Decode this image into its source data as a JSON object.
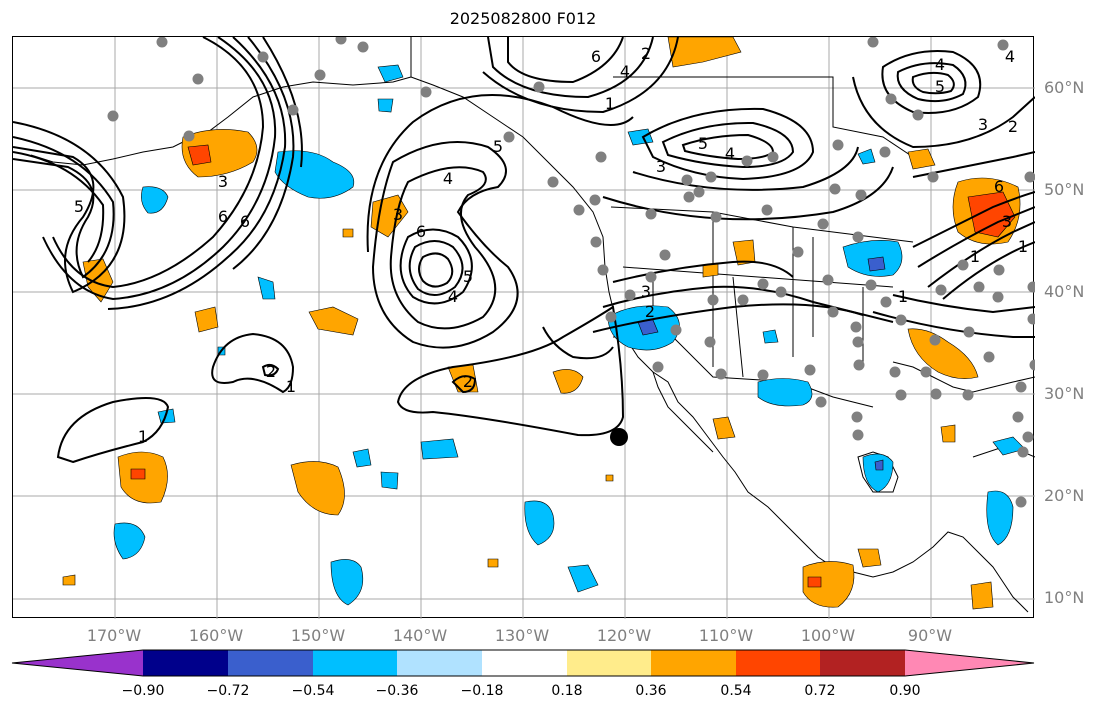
{
  "title": "2025082800 F012",
  "lat_labels": [
    "60°N",
    "50°N",
    "40°N",
    "30°N",
    "20°N",
    "10°N"
  ],
  "lon_labels": [
    "170°W",
    "160°W",
    "150°W",
    "140°W",
    "130°W",
    "120°W",
    "110°W",
    "100°W",
    "90°W"
  ],
  "contour_labels": [
    "6",
    "4",
    "2",
    "1",
    "5",
    "3",
    "6",
    "4",
    "5",
    "3",
    "4",
    "5",
    "3",
    "2",
    "1",
    "6",
    "6",
    "4",
    "3",
    "2",
    "1",
    "2",
    "1",
    "3",
    "2",
    "1",
    "5",
    "5",
    "4",
    "3",
    "1",
    "6",
    "4"
  ],
  "colorbar": {
    "ticks": [
      "−0.90",
      "−0.72",
      "−0.54",
      "−0.36",
      "−0.18",
      "0.18",
      "0.36",
      "0.54",
      "0.72",
      "0.90"
    ],
    "colors": [
      "#9932CC",
      "#00008B",
      "#3A5FCD",
      "#00BFFF",
      "#B0E2FF",
      "#FFFFFF",
      "#FFEC8B",
      "#FFA500",
      "#FF4500",
      "#B22222",
      "#FF88B4"
    ]
  }
}
